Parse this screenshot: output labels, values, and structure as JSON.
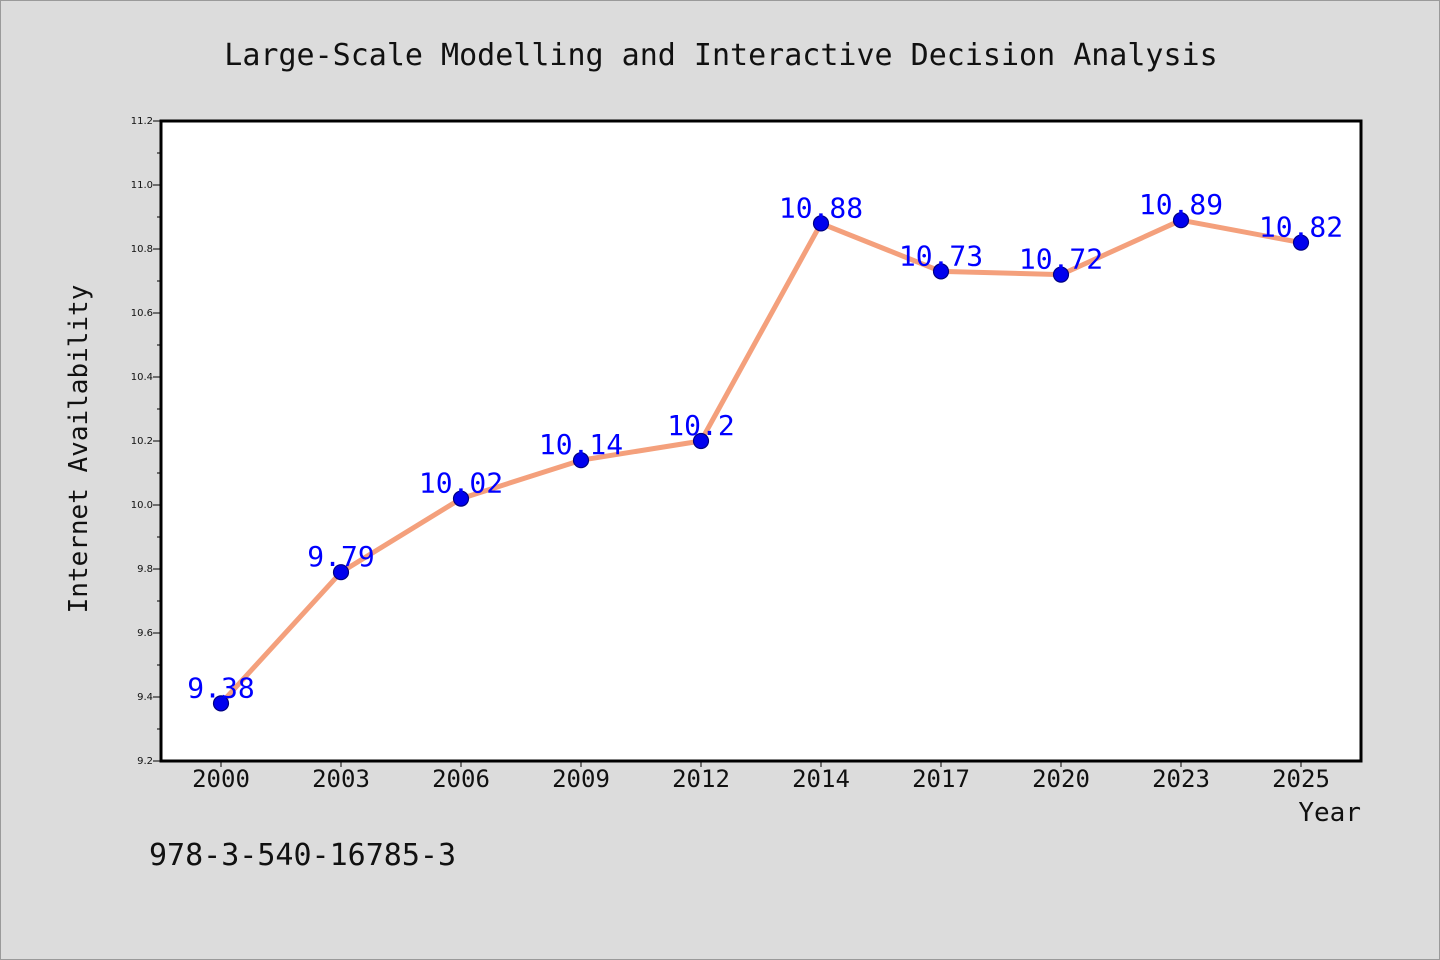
{
  "chart_data": {
    "type": "line",
    "title": "Large-Scale Modelling and Interactive Decision Analysis",
    "xlabel": "Year",
    "ylabel": "Internet Availability",
    "categories": [
      "2000",
      "2003",
      "2006",
      "2009",
      "2012",
      "2014",
      "2017",
      "2020",
      "2023",
      "2025"
    ],
    "values": [
      9.38,
      9.79,
      10.02,
      10.14,
      10.2,
      10.88,
      10.73,
      10.72,
      10.89,
      10.82
    ],
    "data_labels": [
      "9.38",
      "9.79",
      "10.02",
      "10.14",
      "10.2",
      "10.88",
      "10.73",
      "10.72",
      "10.89",
      "10.82"
    ],
    "ylim": [
      9.2,
      11.2
    ],
    "yticks": [
      "9.2",
      "9.4",
      "9.6",
      "9.8",
      "10.0",
      "10.2",
      "10.4",
      "10.6",
      "10.8",
      "11.0",
      "11.2"
    ],
    "grid": false,
    "legend": "none",
    "colors": {
      "line": "#f4a07c",
      "marker": "#0000ee",
      "marker_edge": "#000080",
      "data_label": "#0000ff",
      "background": "#dcdcdc",
      "plot_area": "#ffffff"
    }
  },
  "annotation": "978-3-540-16785-3"
}
